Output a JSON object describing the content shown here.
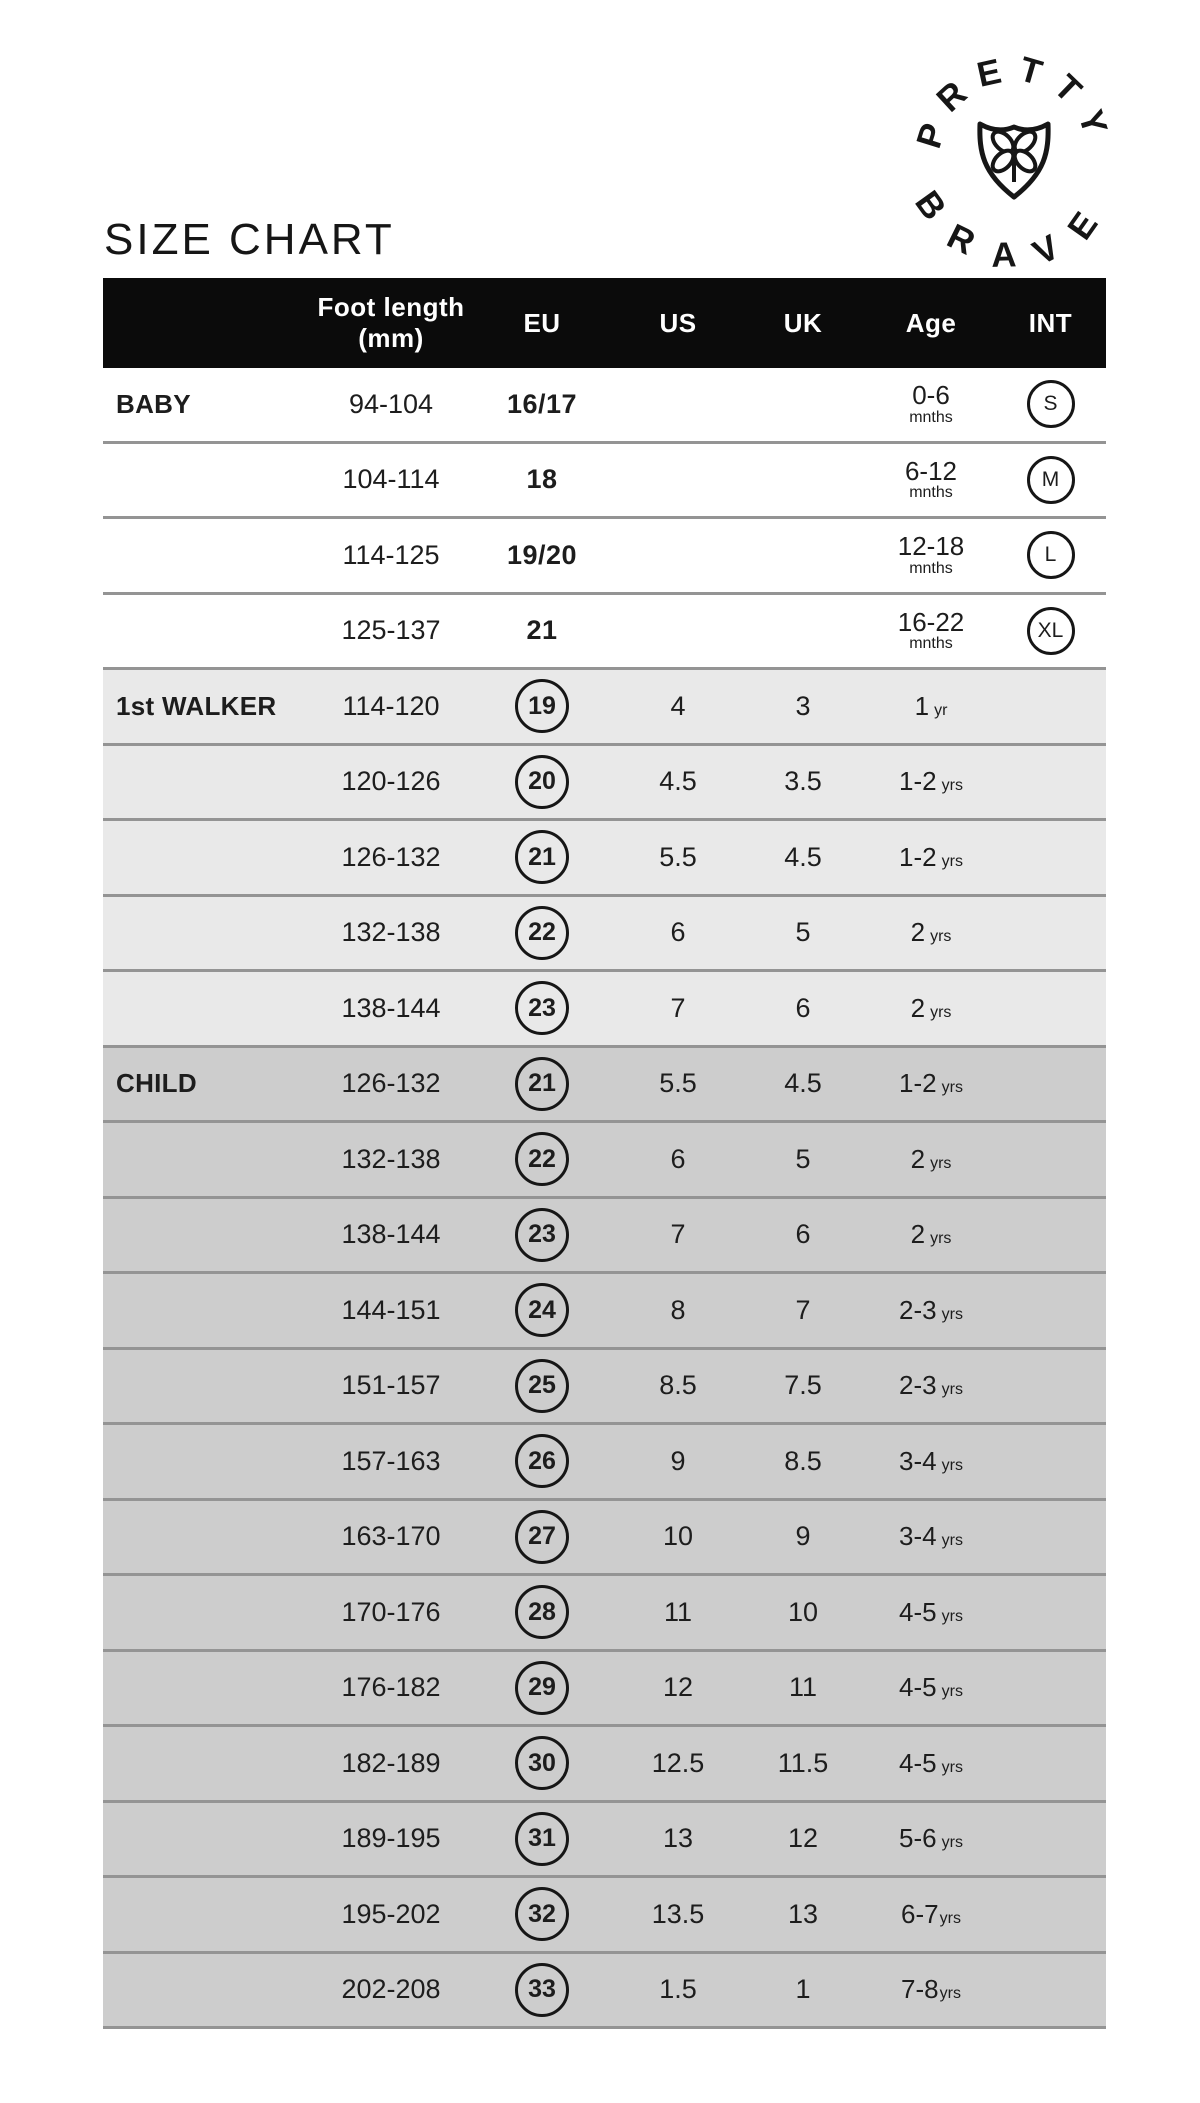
{
  "title": "SIZE CHART",
  "logo": {
    "arc_top": "PRETTY",
    "arc_bottom": "BRAVE",
    "icon": "shield-clover"
  },
  "colors": {
    "header_bg": "#0b0b0b",
    "header_text": "#ffffff",
    "text": "#1d1d1d",
    "divider": "#949494",
    "baby_bg": "#ffffff",
    "walker_bg": "#e9e9e9",
    "child_bg": "#cdcdcd"
  },
  "table": {
    "header": {
      "category": "",
      "foot_line1": "Foot length",
      "foot_line2": "(mm)",
      "eu": "EU",
      "us": "US",
      "uk": "UK",
      "age": "Age",
      "int": "INT"
    },
    "sections": [
      {
        "name": "BABY",
        "key": "baby",
        "rows": [
          {
            "category": "BABY",
            "foot": "94-104",
            "eu": "16/17",
            "eu_circled": false,
            "us": "",
            "uk": "",
            "age": "0-6",
            "age_unit": "mnths",
            "age_stacked": true,
            "int": "S"
          },
          {
            "category": "",
            "foot": "104-114",
            "eu": "18",
            "eu_circled": false,
            "us": "",
            "uk": "",
            "age": "6-12",
            "age_unit": "mnths",
            "age_stacked": true,
            "int": "M"
          },
          {
            "category": "",
            "foot": "114-125",
            "eu": "19/20",
            "eu_circled": false,
            "us": "",
            "uk": "",
            "age": "12-18",
            "age_unit": "mnths",
            "age_stacked": true,
            "int": "L"
          },
          {
            "category": "",
            "foot": "125-137",
            "eu": "21",
            "eu_circled": false,
            "us": "",
            "uk": "",
            "age": "16-22",
            "age_unit": "mnths",
            "age_stacked": true,
            "int": "XL"
          }
        ]
      },
      {
        "name": "1st WALKER",
        "key": "walker",
        "rows": [
          {
            "category": "1st WALKER",
            "foot": "114-120",
            "eu": "19",
            "eu_circled": true,
            "us": "4",
            "uk": "3",
            "age": "1",
            "age_unit": "yr",
            "age_stacked": false,
            "int": ""
          },
          {
            "category": "",
            "foot": "120-126",
            "eu": "20",
            "eu_circled": true,
            "us": "4.5",
            "uk": "3.5",
            "age": "1-2",
            "age_unit": "yrs",
            "age_stacked": false,
            "int": ""
          },
          {
            "category": "",
            "foot": "126-132",
            "eu": "21",
            "eu_circled": true,
            "us": "5.5",
            "uk": "4.5",
            "age": "1-2",
            "age_unit": "yrs",
            "age_stacked": false,
            "int": ""
          },
          {
            "category": "",
            "foot": "132-138",
            "eu": "22",
            "eu_circled": true,
            "us": "6",
            "uk": "5",
            "age": "2",
            "age_unit": "yrs",
            "age_stacked": false,
            "int": ""
          },
          {
            "category": "",
            "foot": "138-144",
            "eu": "23",
            "eu_circled": true,
            "us": "7",
            "uk": "6",
            "age": "2",
            "age_unit": "yrs",
            "age_stacked": false,
            "int": ""
          }
        ]
      },
      {
        "name": "CHILD",
        "key": "child",
        "rows": [
          {
            "category": "CHILD",
            "foot": "126-132",
            "eu": "21",
            "eu_circled": true,
            "us": "5.5",
            "uk": "4.5",
            "age": "1-2",
            "age_unit": "yrs",
            "age_stacked": false,
            "int": ""
          },
          {
            "category": "",
            "foot": "132-138",
            "eu": "22",
            "eu_circled": true,
            "us": "6",
            "uk": "5",
            "age": "2",
            "age_unit": "yrs",
            "age_stacked": false,
            "int": ""
          },
          {
            "category": "",
            "foot": "138-144",
            "eu": "23",
            "eu_circled": true,
            "us": "7",
            "uk": "6",
            "age": "2",
            "age_unit": "yrs",
            "age_stacked": false,
            "int": ""
          },
          {
            "category": "",
            "foot": "144-151",
            "eu": "24",
            "eu_circled": true,
            "us": "8",
            "uk": "7",
            "age": "2-3",
            "age_unit": "yrs",
            "age_stacked": false,
            "int": ""
          },
          {
            "category": "",
            "foot": "151-157",
            "eu": "25",
            "eu_circled": true,
            "us": "8.5",
            "uk": "7.5",
            "age": "2-3",
            "age_unit": "yrs",
            "age_stacked": false,
            "int": ""
          },
          {
            "category": "",
            "foot": "157-163",
            "eu": "26",
            "eu_circled": true,
            "us": "9",
            "uk": "8.5",
            "age": "3-4",
            "age_unit": "yrs",
            "age_stacked": false,
            "int": ""
          },
          {
            "category": "",
            "foot": "163-170",
            "eu": "27",
            "eu_circled": true,
            "us": "10",
            "uk": "9",
            "age": "3-4",
            "age_unit": "yrs",
            "age_stacked": false,
            "int": ""
          },
          {
            "category": "",
            "foot": "170-176",
            "eu": "28",
            "eu_circled": true,
            "us": "11",
            "uk": "10",
            "age": "4-5",
            "age_unit": "yrs",
            "age_stacked": false,
            "int": ""
          },
          {
            "category": "",
            "foot": "176-182",
            "eu": "29",
            "eu_circled": true,
            "us": "12",
            "uk": "11",
            "age": "4-5",
            "age_unit": "yrs",
            "age_stacked": false,
            "int": ""
          },
          {
            "category": "",
            "foot": "182-189",
            "eu": "30",
            "eu_circled": true,
            "us": "12.5",
            "uk": "11.5",
            "age": "4-5",
            "age_unit": "yrs",
            "age_stacked": false,
            "int": ""
          },
          {
            "category": "",
            "foot": "189-195",
            "eu": "31",
            "eu_circled": true,
            "us": "13",
            "uk": "12",
            "age": "5-6",
            "age_unit": "yrs",
            "age_stacked": false,
            "int": ""
          },
          {
            "category": "",
            "foot": "195-202",
            "eu": "32",
            "eu_circled": true,
            "us": "13.5",
            "uk": "13",
            "age": "6-7",
            "age_unit": "yrs",
            "age_stacked": false,
            "age_tight": true,
            "int": ""
          },
          {
            "category": "",
            "foot": "202-208",
            "eu": "33",
            "eu_circled": true,
            "us": "1.5",
            "uk": "1",
            "age": "7-8",
            "age_unit": "yrs",
            "age_stacked": false,
            "age_tight": true,
            "int": ""
          }
        ]
      }
    ]
  }
}
